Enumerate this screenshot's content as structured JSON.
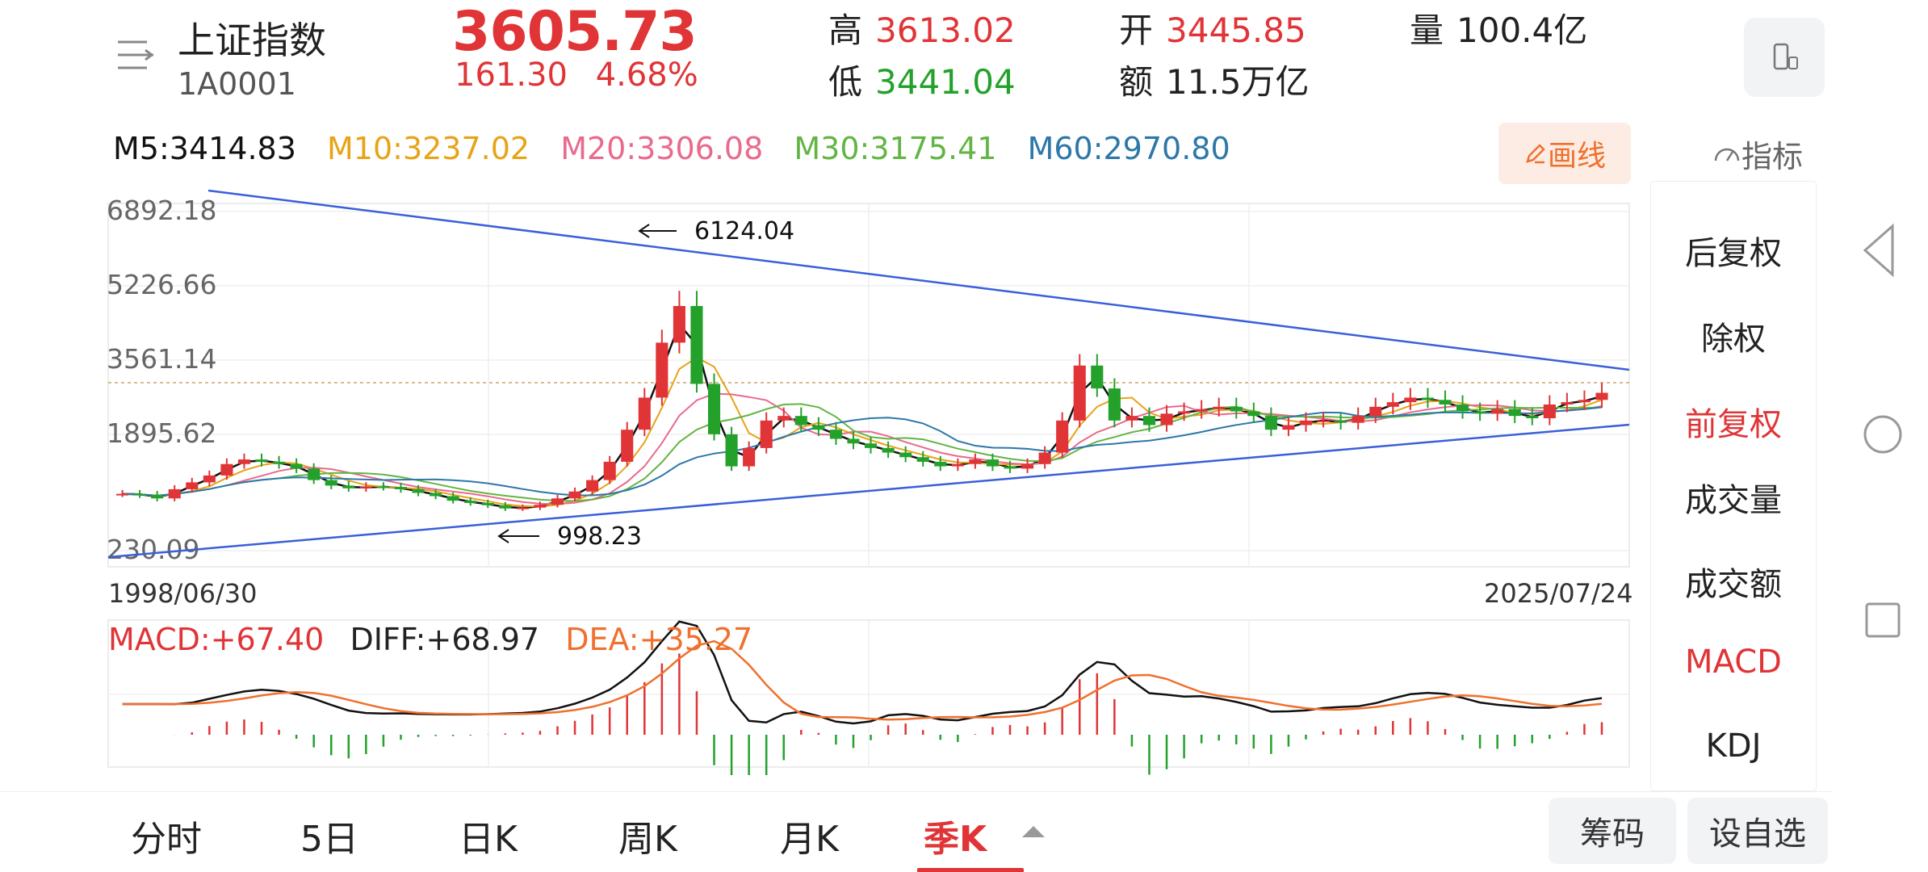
{
  "header": {
    "index_name": "上证指数",
    "index_code": "1A0001",
    "price": "3605.73",
    "change_abs": "161.30",
    "change_pct": "4.68%",
    "high_label": "高",
    "high_value": "3613.02",
    "low_label": "低",
    "low_value": "3441.04",
    "open_label": "开",
    "open_value": "3445.85",
    "amount_label": "额",
    "amount_value": "11.5万亿",
    "volume_label": "量",
    "volume_value": "100.4亿"
  },
  "ma": {
    "m5": "M5:3414.83",
    "m10": "M10:3237.02",
    "m20": "M20:3306.08",
    "m30": "M30:3175.41",
    "m60": "M60:2970.80"
  },
  "toolbar": {
    "draw_label": "画线",
    "indicator_label": "指标"
  },
  "chart": {
    "y_ticks": [
      "6892.18",
      "5226.66",
      "3561.14",
      "1895.62",
      "230.09"
    ],
    "date_start": "1998/06/30",
    "date_end": "2025/07/24",
    "annotation_high": "6124.04",
    "annotation_low": "998.23"
  },
  "chart_data": {
    "type": "candlestick",
    "period": "quarterly",
    "ylim": [
      230.09,
      6892.18
    ],
    "y_ticks": [
      6892.18,
      5226.66,
      3561.14,
      1895.62,
      230.09
    ],
    "x_range": [
      "1998/06/30",
      "2025/07/24"
    ],
    "annotations": [
      {
        "label": "6124.04",
        "value": 6124.04
      },
      {
        "label": "998.23",
        "value": 998.23
      }
    ],
    "moving_averages": [
      {
        "name": "M5",
        "value": 3414.83,
        "color": "#111111"
      },
      {
        "name": "M10",
        "value": 3237.02,
        "color": "#e8a317"
      },
      {
        "name": "M20",
        "value": 3306.08,
        "color": "#e96a8d"
      },
      {
        "name": "M30",
        "value": 3175.41,
        "color": "#62b544"
      },
      {
        "name": "M60",
        "value": 2970.8,
        "color": "#2d78a8"
      }
    ],
    "macd": {
      "macd": "+67.40",
      "diff": "+68.97",
      "dea": "+35.27"
    }
  },
  "macd_labels": {
    "macd": "MACD:+67.40",
    "diff": "DIFF:+68.97",
    "dea": "DEA:+35.27"
  },
  "side_panel": {
    "items": [
      "后复权",
      "除权",
      "前复权",
      "成交量",
      "成交额",
      "MACD",
      "KDJ"
    ],
    "active": [
      "前复权",
      "MACD"
    ]
  },
  "tabs": {
    "items": [
      "分时",
      "5日",
      "日K",
      "周K",
      "月K",
      "季K"
    ],
    "active": "季K"
  },
  "buttons": {
    "chips": "筹码",
    "add_watch": "设自选"
  },
  "colors": {
    "up": "#e03437",
    "down": "#23a12b",
    "accent": "#f0702e",
    "trend": "#3a5fd9"
  }
}
